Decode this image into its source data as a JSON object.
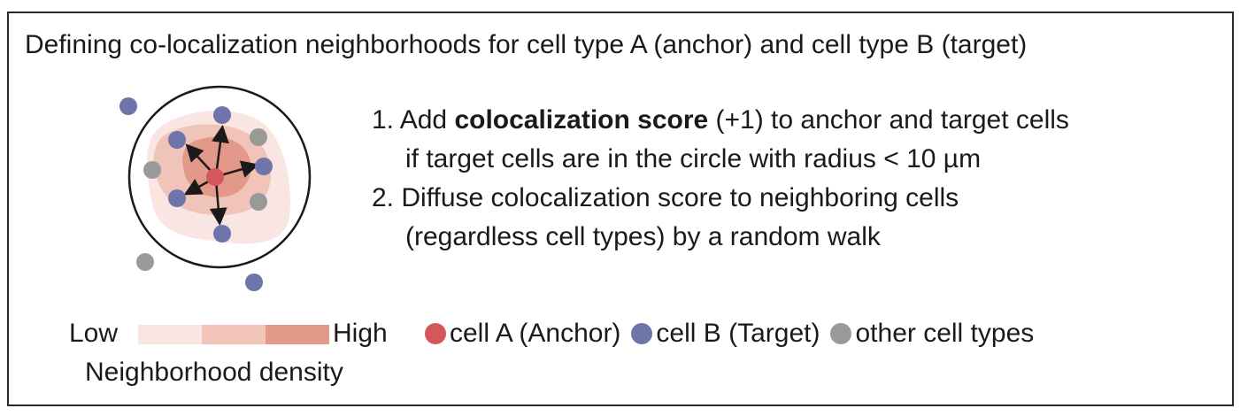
{
  "title": "Defining co-localization neighborhoods for cell type A (anchor) and cell type B (target)",
  "steps": [
    {
      "number": "1.",
      "pre": "Add ",
      "bold": "colocalization score",
      "post": " (+1) to anchor and target cells",
      "line2": "if target cells are in the circle with radius < 10 µm"
    },
    {
      "number": "2.",
      "line1": "Diffuse colocalization score to neighboring cells",
      "line2": "(regardless cell types) by a random walk"
    }
  ],
  "legend": {
    "low_label": "Low",
    "high_label": "High",
    "density_caption": "Neighborhood density",
    "density_colors": [
      "#f9e6e2",
      "#f2c5bb",
      "#e3998a"
    ],
    "cell_a": {
      "label": "cell A (Anchor)",
      "color": "#d3575b"
    },
    "cell_b": {
      "label": "cell B (Target)",
      "color": "#6f74ab"
    },
    "other": {
      "label": "other cell types",
      "color": "#999999"
    }
  },
  "colors": {
    "density_outer": "#f9e6e2",
    "density_mid": "#f1c4b9",
    "density_inner": "#e3998a",
    "arrow": "#1a1a1a",
    "circle": "#1a1a1a"
  }
}
